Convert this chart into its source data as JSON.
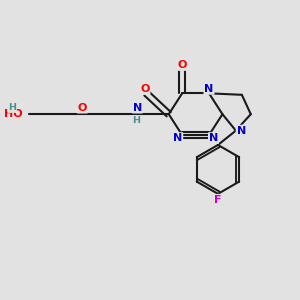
{
  "bg_color": "#e2e2e2",
  "bond_color": "#1a1a1a",
  "atom_colors": {
    "O": "#ff0000",
    "N": "#0000cc",
    "F": "#cc00cc",
    "H": "#4a9090",
    "C": "#1a1a1a"
  },
  "lw": 1.5,
  "fs": 8.0,
  "fs_small": 6.8
}
